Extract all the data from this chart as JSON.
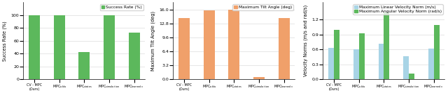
{
  "success_rate": [
    100,
    100,
    42,
    100,
    73
  ],
  "tilt_angle": [
    14.0,
    15.8,
    16.0,
    0.5,
    14.0
  ],
  "linear_vel": [
    0.63,
    0.6,
    0.71,
    0.47,
    0.62
  ],
  "angular_vel": [
    1.0,
    0.92,
    1.35,
    0.12,
    1.1
  ],
  "green_color": "#5cb85c",
  "orange_color": "#f0a06a",
  "blue_color": "#a8d4e6",
  "vel_green_color": "#5cb85c",
  "success_ylim": [
    0,
    120
  ],
  "tilt_ylim": [
    0,
    17.6
  ],
  "vel_ylim": [
    0.0,
    1.55
  ],
  "success_yticks": [
    0,
    20,
    40,
    60,
    80,
    100
  ],
  "tilt_yticks": [
    0.0,
    3.2,
    6.4,
    9.6,
    12.8,
    16.0
  ],
  "vel_yticks": [
    0.0,
    0.3,
    0.6,
    0.9,
    1.2
  ],
  "ylabel1": "Success Rate (%)",
  "ylabel2": "Maximum Tilt Angle (deg)",
  "ylabel3": "Velocity Norms (m/s and rad/s)",
  "legend1": "Success Rate (%)",
  "legend2": "Maximum Tilt Angle (deg)",
  "legend3a": "Maximum Linear Velocity Norm (m/s)",
  "legend3b": "Maximum Angular Velocity Norm (rad/s)",
  "xlabels": [
    "CV - MPC\n(Ours)",
    "MPC_a_bla",
    "MPC_states",
    "MPC_simula_tion",
    "MPC_learned_v"
  ]
}
